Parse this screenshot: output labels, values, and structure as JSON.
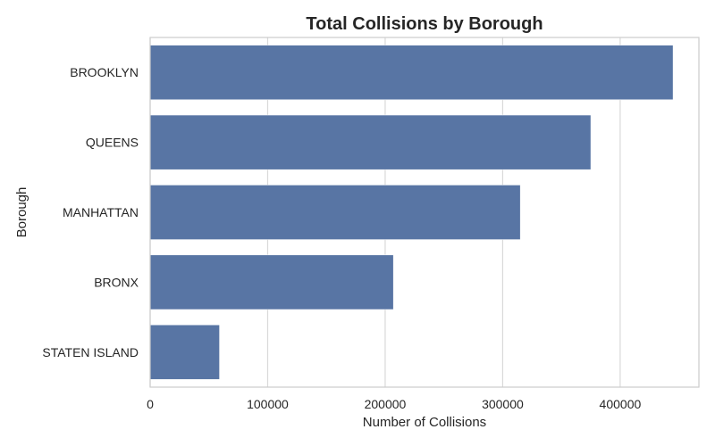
{
  "chart_data": {
    "type": "bar",
    "orientation": "horizontal",
    "title": "Total Collisions by Borough",
    "xlabel": "Number of Collisions",
    "ylabel": "Borough",
    "categories": [
      "BROOKLYN",
      "QUEENS",
      "MANHATTAN",
      "BRONX",
      "STATEN ISLAND"
    ],
    "values": [
      445000,
      375000,
      315000,
      207000,
      59000
    ],
    "xlim": [
      0,
      467000
    ],
    "xticks": [
      0,
      100000,
      200000,
      300000,
      400000
    ],
    "xtick_labels": [
      "0",
      "100000",
      "200000",
      "300000",
      "400000"
    ],
    "grid": true,
    "bar_color": "#5875a4"
  }
}
